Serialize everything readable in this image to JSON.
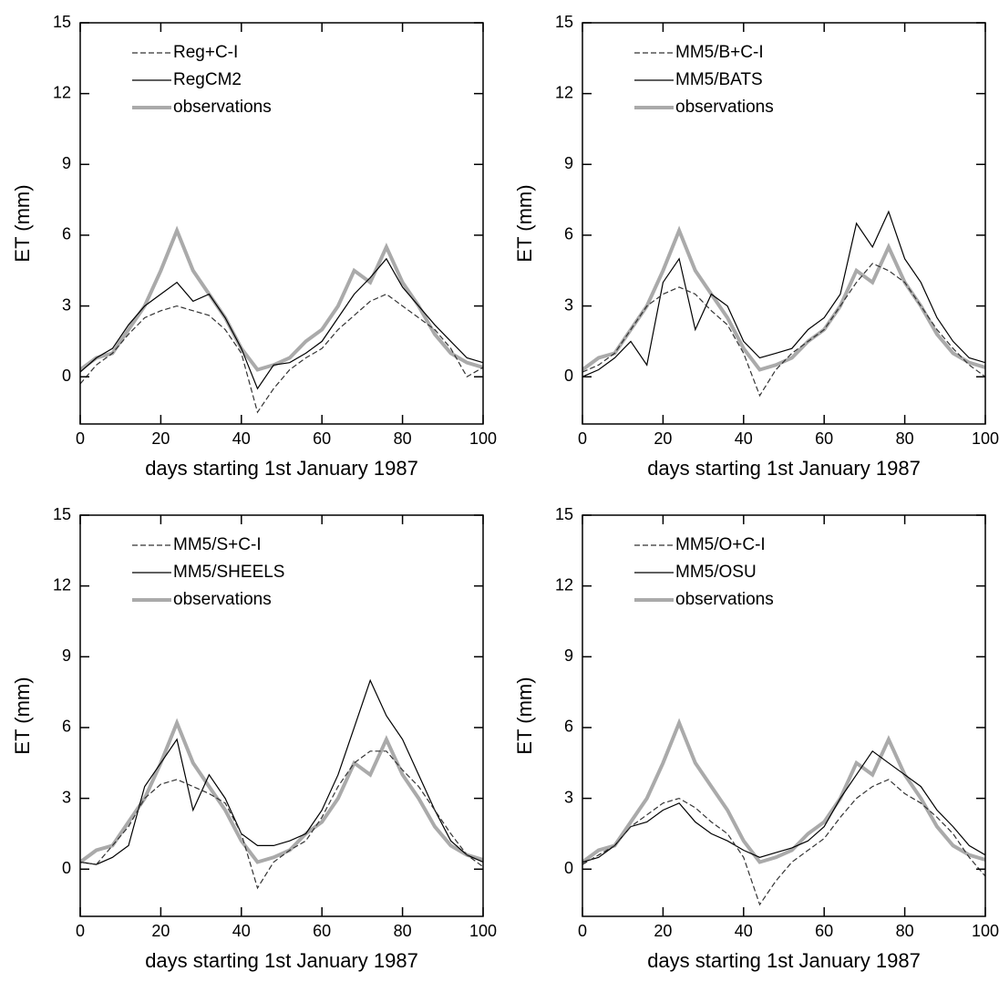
{
  "chart_data": [
    {
      "type": "line",
      "xlabel": "days starting 1st January 1987",
      "ylabel": "ET (mm)",
      "x": [
        0,
        4,
        8,
        12,
        16,
        20,
        24,
        28,
        32,
        36,
        40,
        44,
        48,
        52,
        56,
        60,
        64,
        68,
        72,
        76,
        80,
        84,
        88,
        92,
        96,
        100
      ],
      "xlim": [
        0,
        100
      ],
      "ylim": [
        -2,
        15
      ],
      "xticks": [
        0,
        20,
        40,
        60,
        80,
        100
      ],
      "yticks": [
        0,
        3,
        6,
        9,
        12,
        15
      ],
      "series": [
        {
          "name": "Reg+C-I",
          "color": "#333333",
          "dash": true,
          "values": [
            -0.3,
            0.5,
            1.0,
            1.8,
            2.5,
            2.8,
            3.0,
            2.8,
            2.6,
            2.0,
            1.0,
            -1.5,
            -0.5,
            0.3,
            0.8,
            1.2,
            2.0,
            2.6,
            3.2,
            3.5,
            3.0,
            2.5,
            2.0,
            1.2,
            0.0,
            0.4
          ]
        },
        {
          "name": "RegCM2",
          "color": "#000000",
          "dash": false,
          "values": [
            0.2,
            0.8,
            1.2,
            2.2,
            3.0,
            3.5,
            4.0,
            3.2,
            3.5,
            2.5,
            1.2,
            -0.5,
            0.5,
            0.6,
            1.0,
            1.5,
            2.5,
            3.5,
            4.2,
            5.0,
            3.8,
            3.0,
            2.2,
            1.5,
            0.8,
            0.6
          ]
        },
        {
          "name": "observations",
          "color": "#aaaaaa",
          "dash": false,
          "values": [
            0.3,
            0.8,
            1.0,
            2.0,
            3.0,
            4.5,
            6.2,
            4.5,
            3.5,
            2.5,
            1.2,
            0.3,
            0.5,
            0.8,
            1.5,
            2.0,
            3.0,
            4.5,
            4.0,
            5.5,
            4.0,
            3.0,
            1.8,
            1.0,
            0.6,
            0.4
          ]
        }
      ]
    },
    {
      "type": "line",
      "xlabel": "days starting 1st January 1987",
      "ylabel": "ET (mm)",
      "x": [
        0,
        4,
        8,
        12,
        16,
        20,
        24,
        28,
        32,
        36,
        40,
        44,
        48,
        52,
        56,
        60,
        64,
        68,
        72,
        76,
        80,
        84,
        88,
        92,
        96,
        100
      ],
      "xlim": [
        0,
        100
      ],
      "ylim": [
        -2,
        15
      ],
      "xticks": [
        0,
        20,
        40,
        60,
        80,
        100
      ],
      "yticks": [
        0,
        3,
        6,
        9,
        12,
        15
      ],
      "series": [
        {
          "name": "MM5/B+C-I",
          "color": "#333333",
          "dash": true,
          "values": [
            0.2,
            0.5,
            1.0,
            2.0,
            3.0,
            3.5,
            3.8,
            3.5,
            2.8,
            2.2,
            1.0,
            -0.8,
            0.3,
            1.0,
            1.5,
            2.0,
            3.0,
            4.0,
            4.8,
            4.5,
            4.0,
            3.0,
            2.0,
            1.2,
            0.5,
            0.0
          ]
        },
        {
          "name": "MM5/BATS",
          "color": "#000000",
          "dash": false,
          "values": [
            0.0,
            0.3,
            0.8,
            1.5,
            0.5,
            4.0,
            5.0,
            2.0,
            3.5,
            3.0,
            1.5,
            0.8,
            1.0,
            1.2,
            2.0,
            2.5,
            3.5,
            6.5,
            5.5,
            7.0,
            5.0,
            4.0,
            2.5,
            1.5,
            0.8,
            0.6
          ]
        },
        {
          "name": "observations",
          "color": "#aaaaaa",
          "dash": false,
          "values": [
            0.3,
            0.8,
            1.0,
            2.0,
            3.0,
            4.5,
            6.2,
            4.5,
            3.5,
            2.5,
            1.2,
            0.3,
            0.5,
            0.8,
            1.5,
            2.0,
            3.0,
            4.5,
            4.0,
            5.5,
            4.0,
            3.0,
            1.8,
            1.0,
            0.6,
            0.4
          ]
        }
      ]
    },
    {
      "type": "line",
      "xlabel": "days starting 1st January 1987",
      "ylabel": "ET (mm)",
      "x": [
        0,
        4,
        8,
        12,
        16,
        20,
        24,
        28,
        32,
        36,
        40,
        44,
        48,
        52,
        56,
        60,
        64,
        68,
        72,
        76,
        80,
        84,
        88,
        92,
        96,
        100
      ],
      "xlim": [
        0,
        100
      ],
      "ylim": [
        -2,
        15
      ],
      "xticks": [
        0,
        20,
        40,
        60,
        80,
        100
      ],
      "yticks": [
        0,
        3,
        6,
        9,
        12,
        15
      ],
      "series": [
        {
          "name": "MM5/S+C-I",
          "color": "#333333",
          "dash": true,
          "values": [
            0.3,
            0.2,
            1.0,
            1.8,
            3.0,
            3.6,
            3.8,
            3.5,
            3.2,
            2.8,
            1.5,
            -0.8,
            0.3,
            0.8,
            1.2,
            2.2,
            3.5,
            4.5,
            5.0,
            5.0,
            4.2,
            3.5,
            2.5,
            1.5,
            0.6,
            0.1
          ]
        },
        {
          "name": "MM5/SHEELS",
          "color": "#000000",
          "dash": false,
          "values": [
            0.3,
            0.2,
            0.5,
            1.0,
            3.5,
            4.5,
            5.5,
            2.5,
            4.0,
            3.0,
            1.5,
            1.0,
            1.0,
            1.2,
            1.5,
            2.5,
            4.0,
            6.0,
            8.0,
            6.5,
            5.5,
            4.0,
            2.5,
            1.2,
            0.6,
            0.3
          ]
        },
        {
          "name": "observations",
          "color": "#aaaaaa",
          "dash": false,
          "values": [
            0.3,
            0.8,
            1.0,
            2.0,
            3.0,
            4.5,
            6.2,
            4.5,
            3.5,
            2.5,
            1.2,
            0.3,
            0.5,
            0.8,
            1.5,
            2.0,
            3.0,
            4.5,
            4.0,
            5.5,
            4.0,
            3.0,
            1.8,
            1.0,
            0.6,
            0.4
          ]
        }
      ]
    },
    {
      "type": "line",
      "xlabel": "days starting 1st January 1987",
      "ylabel": "ET (mm)",
      "x": [
        0,
        4,
        8,
        12,
        16,
        20,
        24,
        28,
        32,
        36,
        40,
        44,
        48,
        52,
        56,
        60,
        64,
        68,
        72,
        76,
        80,
        84,
        88,
        92,
        96,
        100
      ],
      "xlim": [
        0,
        100
      ],
      "ylim": [
        -2,
        15
      ],
      "xticks": [
        0,
        20,
        40,
        60,
        80,
        100
      ],
      "yticks": [
        0,
        3,
        6,
        9,
        12,
        15
      ],
      "series": [
        {
          "name": "MM5/O+C-I",
          "color": "#333333",
          "dash": true,
          "values": [
            0.2,
            0.6,
            1.0,
            1.8,
            2.3,
            2.8,
            3.0,
            2.6,
            2.0,
            1.5,
            0.5,
            -1.5,
            -0.5,
            0.3,
            0.8,
            1.3,
            2.2,
            3.0,
            3.5,
            3.8,
            3.2,
            2.8,
            2.2,
            1.5,
            0.5,
            -0.3
          ]
        },
        {
          "name": "MM5/OSU",
          "color": "#000000",
          "dash": false,
          "values": [
            0.3,
            0.5,
            1.0,
            1.8,
            2.0,
            2.5,
            2.8,
            2.0,
            1.5,
            1.2,
            0.8,
            0.5,
            0.7,
            0.9,
            1.2,
            1.8,
            3.0,
            4.0,
            5.0,
            4.5,
            4.0,
            3.5,
            2.5,
            1.8,
            1.0,
            0.6
          ]
        },
        {
          "name": "observations",
          "color": "#aaaaaa",
          "dash": false,
          "values": [
            0.3,
            0.8,
            1.0,
            2.0,
            3.0,
            4.5,
            6.2,
            4.5,
            3.5,
            2.5,
            1.2,
            0.3,
            0.5,
            0.8,
            1.5,
            2.0,
            3.0,
            4.5,
            4.0,
            5.5,
            4.0,
            3.0,
            1.8,
            1.0,
            0.6,
            0.4
          ]
        }
      ]
    }
  ]
}
